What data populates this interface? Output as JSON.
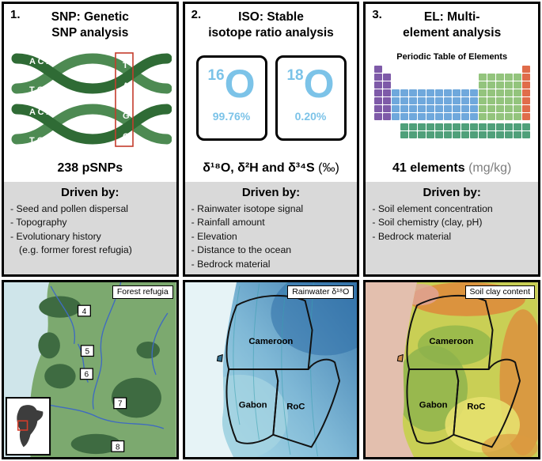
{
  "panels": [
    {
      "number": "1.",
      "title_lines": [
        "SNP: Genetic",
        "SNP analysis"
      ],
      "stat": "238 pSNPs",
      "stat_suffix": "",
      "driven_by": "Driven by:",
      "drivers": [
        "- Seed and pollen dispersal",
        "- Topography",
        "- Evolutionary history",
        "(e.g. former forest refugia)"
      ],
      "dna": {
        "h1_top": "A C A",
        "h1_bottom": "T G T",
        "h1_snp_top": "T",
        "h1_snp_bottom": "A",
        "h2_top": "A C A",
        "h2_bottom": "T G T",
        "h2_snp_top": "G",
        "h2_snp_bottom": "C"
      },
      "map": {
        "label": "Forest refugia",
        "refugia_numbers": [
          "4",
          "5",
          "6",
          "7",
          "8"
        ]
      }
    },
    {
      "number": "2.",
      "title_lines": [
        "ISO: Stable",
        "isotope ratio analysis"
      ],
      "isotopes": [
        {
          "mass": "16",
          "symbol": "O",
          "abundance": "99.76%"
        },
        {
          "mass": "18",
          "symbol": "O",
          "abundance": "0.20%"
        }
      ],
      "stat": "δ¹⁸O, δ²H and δ³⁴S",
      "stat_suffix": "(‰)",
      "driven_by": "Driven by:",
      "drivers": [
        "- Rainwater isotope signal",
        "- Rainfall amount",
        "- Elevation",
        "- Distance to the ocean",
        "- Bedrock material"
      ],
      "map": {
        "label": "Rainwater δ¹⁸O",
        "countries": [
          "Cameroon",
          "Gabon",
          "RoC"
        ]
      }
    },
    {
      "number": "3.",
      "title_lines": [
        "EL: Multi-",
        "element analysis"
      ],
      "periodic_table": {
        "heading": "Periodic Table of Elements",
        "colors": {
          "P": "#7e5aa8",
          "B": "#6fa8dc",
          "G": "#93c47d",
          "O": "#e06c4a",
          "T": "#4fa07a"
        },
        "rows": [
          "P................O",
          "PP..........GGGGGO",
          "PP..........GGGGGO",
          "PPBBBBBBBBBBGGGGGO",
          "PPBBBBBBBBBBGGGGGO",
          "PPBBBBBBBBBBGGGGGO",
          "PPBBBBBBBBBBGGGGGO",
          "gap",
          "...TTTTTTTTTTTTTTT",
          "...TTTTTTTTTTTTTTT"
        ]
      },
      "stat": "41 elements",
      "stat_suffix": "(mg/kg)",
      "driven_by": "Driven by:",
      "drivers": [
        "- Soil element concentration",
        "- Soil chemistry (clay, pH)",
        "- Bedrock material"
      ],
      "map": {
        "label": "Soil clay content",
        "countries": [
          "Cameroon",
          "Gabon",
          "RoC"
        ]
      }
    }
  ]
}
